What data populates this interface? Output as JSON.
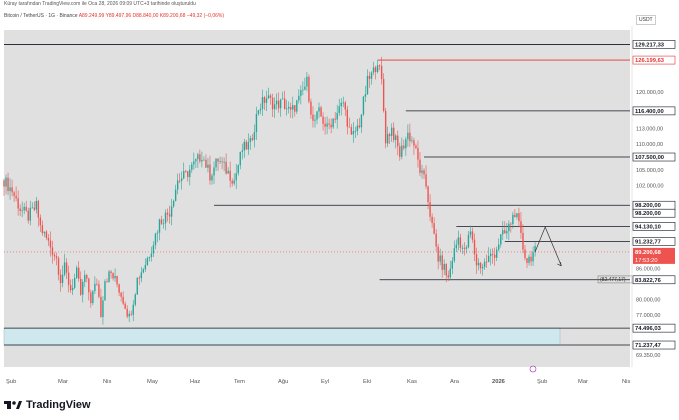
{
  "header": {
    "meta": "Küray tarafından TradingView.com ile Oca 28, 2026 09:09 UTC+3 tarihinde oluşturuldu",
    "symbol": "Bitcoin / TetherUS · 1G · Binance",
    "ohlc": "A89.249,99  Y89.497,96  D88.840,00  K89.200,68  −49,32 (−0,06%)"
  },
  "currency": "USDT",
  "footer": {
    "brand": "TradingView"
  },
  "colors": {
    "background": "#ffffff",
    "plot_bg": "#e0e0e0",
    "up": "#26a69a",
    "down": "#ef5350",
    "level_line": "#131722",
    "resistance_red": "#e2342f",
    "zone": "#cfe8ee"
  },
  "chart_data": {
    "type": "candlestick",
    "x_tick_labels": [
      "Şub",
      "Mar",
      "Nis",
      "May",
      "Haz",
      "Tem",
      "Ağu",
      "Eyl",
      "Eki",
      "Kas",
      "Ara",
      "2026",
      "Şub",
      "Mar",
      "Nis"
    ],
    "y_tick_labels": [
      "129.217,33",
      "126.199,63",
      "120.000,00",
      "116.400,00",
      "113.000,00",
      "110.000,00",
      "107.500,00",
      "105.000,00",
      "102.000,00",
      "98.200,00",
      "98.200,00",
      "94.130,10",
      "91.232,77",
      "89.200,68",
      "17:53:20",
      "86.000,00",
      "83.822,76",
      "80.000,00",
      "77.000,00",
      "74.496,03",
      "71.237,47",
      "69.350,00"
    ],
    "ylim": [
      67000,
      132000
    ],
    "y_ticks": [
      69350,
      74496.03,
      77000,
      80000,
      83822.76,
      86000,
      89200.68,
      91232.77,
      94130.1,
      98200,
      102000,
      105000,
      107500,
      110000,
      113000,
      116400,
      120000,
      126199.63,
      129217.33
    ],
    "horizontal_levels": [
      {
        "price": 129217.33,
        "label": "129.217,33",
        "style": "dark"
      },
      {
        "price": 126199.63,
        "label": "126.199,63",
        "style": "red"
      },
      {
        "price": 116400.0,
        "label": "116.400,00",
        "style": "dark"
      },
      {
        "price": 107500.0,
        "label": "107.500,00",
        "style": "dark"
      },
      {
        "price": 98200.0,
        "label": "98.200,00",
        "style": "dark"
      },
      {
        "price": 94130.1,
        "label": "94.130,10",
        "style": "dark"
      },
      {
        "price": 91232.77,
        "label": "91.232,77",
        "style": "dark"
      },
      {
        "price": 83822.76,
        "label": "83.822,76",
        "style": "dark"
      },
      {
        "price": 74496.03,
        "label": "74.496,03",
        "style": "dark"
      },
      {
        "price": 71237.47,
        "label": "71.237,47",
        "style": "dark"
      }
    ],
    "current_price": {
      "price": 89200.68,
      "label": "89.200,68",
      "countdown": "17:53:20"
    },
    "annotations": [
      {
        "text": "(82.477,17)"
      }
    ],
    "series_points": [
      [
        0,
        103000
      ],
      [
        4,
        101000
      ],
      [
        8,
        97500
      ],
      [
        12,
        96000
      ],
      [
        16,
        98000
      ],
      [
        18,
        94000
      ],
      [
        22,
        91000
      ],
      [
        26,
        88000
      ],
      [
        28,
        84000
      ],
      [
        30,
        86000
      ],
      [
        33,
        82000
      ],
      [
        36,
        85000
      ],
      [
        38,
        81000
      ],
      [
        40,
        84500
      ],
      [
        43,
        80000
      ],
      [
        46,
        83500
      ],
      [
        48,
        77500
      ],
      [
        50,
        84000
      ],
      [
        53,
        85000
      ],
      [
        56,
        83000
      ],
      [
        60,
        79000
      ],
      [
        62,
        76500
      ],
      [
        64,
        80000
      ],
      [
        66,
        84000
      ],
      [
        70,
        87000
      ],
      [
        73,
        90000
      ],
      [
        77,
        95000
      ],
      [
        82,
        97000
      ],
      [
        86,
        103000
      ],
      [
        90,
        104000
      ],
      [
        94,
        106000
      ],
      [
        98,
        108000
      ],
      [
        102,
        104000
      ],
      [
        106,
        107000
      ],
      [
        110,
        105000
      ],
      [
        114,
        103000
      ],
      [
        118,
        109000
      ],
      [
        122,
        110000
      ],
      [
        126,
        117000
      ],
      [
        130,
        119000
      ],
      [
        134,
        117500
      ],
      [
        138,
        118000
      ],
      [
        142,
        116000
      ],
      [
        146,
        118500
      ],
      [
        150,
        122000
      ],
      [
        153,
        114000
      ],
      [
        156,
        116000
      ],
      [
        160,
        113000
      ],
      [
        164,
        115500
      ],
      [
        168,
        118000
      ],
      [
        172,
        111000
      ],
      [
        176,
        114000
      ],
      [
        180,
        122000
      ],
      [
        183,
        124000
      ],
      [
        185,
        126199
      ],
      [
        187,
        122000
      ],
      [
        189,
        111000
      ],
      [
        192,
        113000
      ],
      [
        196,
        108000
      ],
      [
        200,
        112000
      ],
      [
        203,
        110000
      ],
      [
        206,
        105000
      ],
      [
        209,
        102000
      ],
      [
        212,
        94000
      ],
      [
        215,
        88000
      ],
      [
        218,
        86000
      ],
      [
        220,
        84000
      ],
      [
        222,
        88000
      ],
      [
        225,
        92000
      ],
      [
        228,
        89000
      ],
      [
        231,
        93000
      ],
      [
        234,
        87000
      ],
      [
        237,
        86500
      ],
      [
        240,
        88000
      ],
      [
        243,
        89000
      ],
      [
        246,
        92000
      ],
      [
        249,
        93000
      ],
      [
        251,
        95000
      ],
      [
        253,
        97000
      ],
      [
        255,
        94000
      ],
      [
        257,
        90000
      ],
      [
        259,
        87500
      ],
      [
        261,
        88500
      ],
      [
        263,
        89200
      ]
    ],
    "forecast_path": [
      [
        263,
        89200
      ],
      [
        268,
        94000
      ],
      [
        276,
        86500
      ]
    ]
  }
}
